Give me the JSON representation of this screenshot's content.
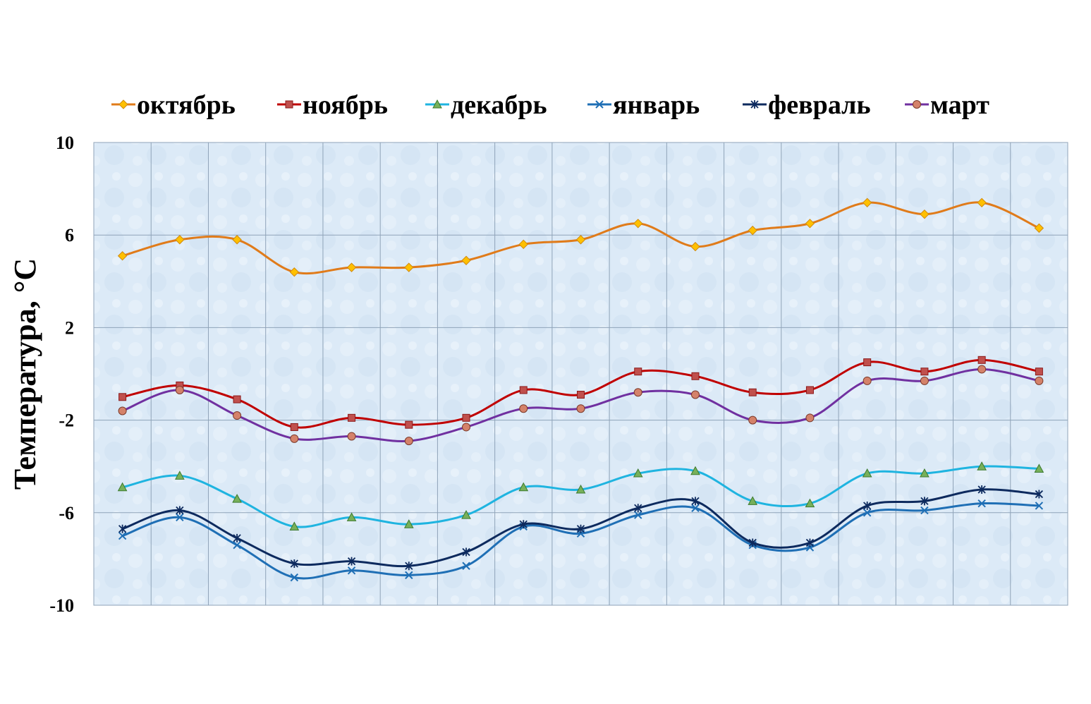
{
  "chart_data": {
    "type": "line",
    "ylabel": "Температура, °C",
    "xlabel": "",
    "ylim": [
      -10,
      10
    ],
    "yticks": [
      "10",
      "6",
      "2",
      "-2",
      "-6",
      "-10"
    ],
    "ytick_values": [
      10,
      6,
      2,
      -2,
      -6,
      -10
    ],
    "x_count": 17,
    "grid": true,
    "legend_position": "top",
    "series": [
      {
        "name": "октябрь",
        "color": "#E07B1A",
        "marker": "diamond",
        "marker_fill": "#FFC000",
        "values": [
          5.1,
          5.8,
          5.8,
          4.4,
          4.6,
          4.6,
          4.9,
          5.6,
          5.8,
          6.5,
          5.5,
          6.2,
          6.5,
          7.4,
          6.9,
          7.4,
          6.3
        ]
      },
      {
        "name": "ноябрь",
        "color": "#C00000",
        "marker": "square",
        "marker_fill": "#C0504D",
        "values": [
          -1.0,
          -0.5,
          -1.1,
          -2.3,
          -1.9,
          -2.2,
          -1.9,
          -0.7,
          -0.9,
          0.1,
          -0.1,
          -0.8,
          -0.7,
          0.5,
          0.1,
          0.6,
          0.1
        ]
      },
      {
        "name": "декабрь",
        "color": "#1FB4E0",
        "marker": "triangle",
        "marker_fill": "#77B05A",
        "values": [
          -4.9,
          -4.4,
          -5.4,
          -6.6,
          -6.2,
          -6.5,
          -6.1,
          -4.9,
          -5.0,
          -4.3,
          -4.2,
          -5.5,
          -5.6,
          -4.3,
          -4.3,
          -4.0,
          -4.1
        ]
      },
      {
        "name": "январь",
        "color": "#1F6FB5",
        "marker": "x",
        "marker_fill": "#1F6FB5",
        "values": [
          -7.0,
          -6.2,
          -7.4,
          -8.8,
          -8.5,
          -8.7,
          -8.3,
          -6.6,
          -6.9,
          -6.1,
          -5.8,
          -7.4,
          -7.5,
          -6.0,
          -5.9,
          -5.6,
          -5.7
        ]
      },
      {
        "name": "февраль",
        "color": "#0D2A5E",
        "marker": "star",
        "marker_fill": "#0D2A5E",
        "values": [
          -6.7,
          -5.9,
          -7.1,
          -8.2,
          -8.1,
          -8.3,
          -7.7,
          -6.5,
          -6.7,
          -5.8,
          -5.5,
          -7.3,
          -7.3,
          -5.7,
          -5.5,
          -5.0,
          -5.2
        ]
      },
      {
        "name": "март",
        "color": "#7030A0",
        "marker": "circle",
        "marker_fill": "#D4826A",
        "values": [
          -1.6,
          -0.7,
          -1.8,
          -2.8,
          -2.7,
          -2.9,
          -2.3,
          -1.5,
          -1.5,
          -0.8,
          -0.9,
          -2.0,
          -1.9,
          -0.3,
          -0.3,
          0.2,
          -0.3
        ]
      }
    ],
    "colors": {
      "plot_bg": "#DCEAF7",
      "grid": "#8FA3B8"
    }
  }
}
